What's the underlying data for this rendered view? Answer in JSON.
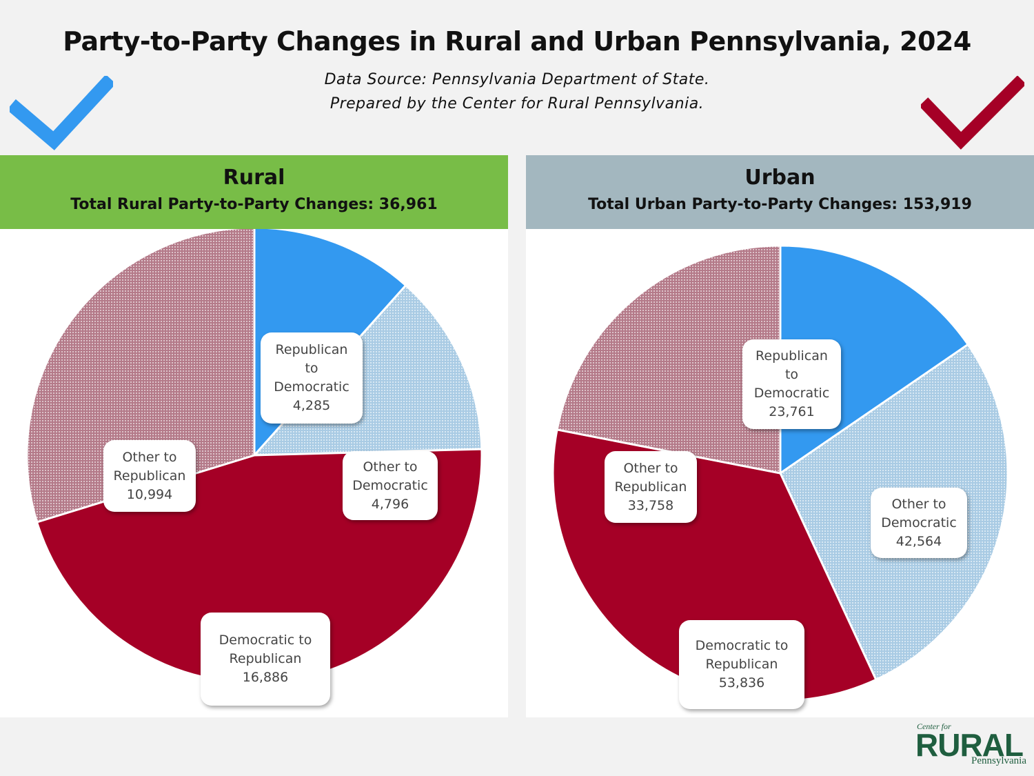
{
  "title": "Party-to-Party Changes in Rural and Urban Pennsylvania, 2024",
  "subtitle_line1": "Data Source: Pennsylvania Department of State.",
  "subtitle_line2": "Prepared by the Center for Rural Pennsylvania.",
  "icons": {
    "left_check": "blue-checkmark-icon",
    "right_check": "red-checkmark-icon"
  },
  "colors": {
    "rural_header": "#78bd47",
    "urban_header": "#a3b7bf",
    "republican_to_democratic": "#3399f0",
    "other_to_democratic": "#a9cbe4",
    "democratic_to_republican": "#a50026",
    "other_to_republican": "#b47a89"
  },
  "rural": {
    "header": "Rural",
    "total_label": "Total Rural Party-to-Party Changes: 36,961"
  },
  "urban": {
    "header": "Urban",
    "total_label": "Total Urban Party-to-Party Changes: 153,919"
  },
  "chart_data": [
    {
      "type": "pie",
      "title": "Rural",
      "categories": [
        "Republican to Democratic",
        "Other to Democratic",
        "Democratic to Republican",
        "Other to Republican"
      ],
      "values": [
        4285,
        4796,
        16886,
        10994
      ],
      "labels": [
        {
          "lines": [
            "Republican",
            "to",
            "Democratic"
          ],
          "value": "4,285"
        },
        {
          "lines": [
            "Other to",
            "Democratic"
          ],
          "value": "4,796"
        },
        {
          "lines": [
            "Democratic to",
            "Republican"
          ],
          "value": "16,886"
        },
        {
          "lines": [
            "Other to",
            "Republican"
          ],
          "value": "10,994"
        }
      ]
    },
    {
      "type": "pie",
      "title": "Urban",
      "categories": [
        "Republican to Democratic",
        "Other to Democratic",
        "Democratic to Republican",
        "Other to Republican"
      ],
      "values": [
        23761,
        42564,
        53836,
        33758
      ],
      "labels": [
        {
          "lines": [
            "Republican",
            "to",
            "Democratic"
          ],
          "value": "23,761"
        },
        {
          "lines": [
            "Other to",
            "Democratic"
          ],
          "value": "42,564"
        },
        {
          "lines": [
            "Democratic to",
            "Republican"
          ],
          "value": "53,836"
        },
        {
          "lines": [
            "Other to",
            "Republican"
          ],
          "value": "33,758"
        }
      ]
    }
  ],
  "logo": {
    "line1": "Center for",
    "line2": "RURAL",
    "line3": "Pennsylvania"
  }
}
